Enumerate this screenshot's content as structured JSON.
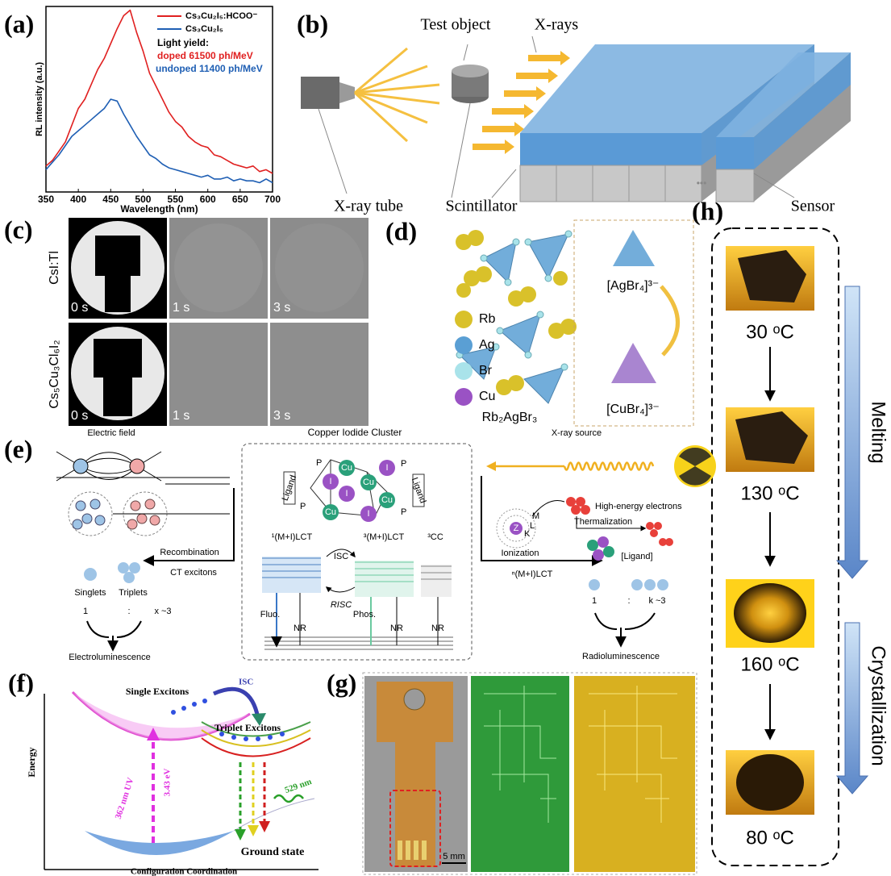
{
  "chart_data": {
    "type": "line",
    "x_label": "Wavelength (nm)",
    "y_label": "RL intensity (a.u.)",
    "x": [
      350,
      360,
      370,
      380,
      390,
      400,
      410,
      420,
      430,
      440,
      450,
      460,
      470,
      480,
      490,
      500,
      510,
      520,
      530,
      540,
      550,
      560,
      570,
      580,
      590,
      600,
      610,
      620,
      630,
      640,
      650,
      660,
      670,
      680,
      690,
      700
    ],
    "xlim": [
      350,
      700
    ],
    "xticks": [
      350,
      400,
      450,
      500,
      550,
      600,
      650,
      700
    ],
    "ylim": [
      0,
      1
    ],
    "series": [
      {
        "name": "Cs₃Cu₂I₅:HCOO⁻",
        "color": "#e02020",
        "values": [
          0.14,
          0.17,
          0.22,
          0.27,
          0.36,
          0.45,
          0.5,
          0.58,
          0.66,
          0.72,
          0.8,
          0.88,
          0.95,
          0.98,
          0.86,
          0.76,
          0.64,
          0.57,
          0.5,
          0.43,
          0.38,
          0.35,
          0.3,
          0.27,
          0.25,
          0.24,
          0.2,
          0.19,
          0.17,
          0.15,
          0.14,
          0.13,
          0.14,
          0.11,
          0.12,
          0.1
        ]
      },
      {
        "name": "Cs₃Cu₂I₅",
        "color": "#1f5fb4",
        "values": [
          0.12,
          0.16,
          0.2,
          0.25,
          0.3,
          0.33,
          0.36,
          0.39,
          0.42,
          0.45,
          0.5,
          0.49,
          0.42,
          0.36,
          0.3,
          0.25,
          0.2,
          0.18,
          0.15,
          0.13,
          0.12,
          0.11,
          0.1,
          0.09,
          0.08,
          0.09,
          0.07,
          0.07,
          0.08,
          0.06,
          0.07,
          0.06,
          0.06,
          0.05,
          0.07,
          0.05
        ]
      }
    ],
    "annotations": [
      "Light yield:",
      "doped 61500 ph/MeV",
      "undoped 11400 ph/MeV"
    ]
  },
  "figure": {
    "a": {
      "label": "(a)"
    },
    "b": {
      "label": "(b)",
      "test_object": "Test object",
      "x_rays": "X-rays",
      "x_ray_tube": "X-ray tube",
      "scintillator": "Scintillator",
      "sensor": "Sensor",
      "ellipsis": "•••"
    },
    "c": {
      "label": "(c)",
      "rows": [
        {
          "name": "CsI:Tl",
          "frames": [
            "0 s",
            "1 s",
            "3 s"
          ]
        },
        {
          "name": "Cs₅Cu₃Cl₆I₂",
          "frames": [
            "0 s",
            "1 s",
            "3 s"
          ]
        }
      ]
    },
    "d": {
      "label": "(d)",
      "legend": [
        "Rb",
        "Ag",
        "Br",
        "Cu"
      ],
      "formula": "Rb₂AgBr₃",
      "ag_unit": "[AgBr₄]³⁻",
      "cu_unit": "[CuBr₄]³⁻"
    },
    "e": {
      "label": "(e)",
      "electric_field": "Electric field",
      "cluster_title": "Copper Iodide Cluster",
      "xray_source": "X-ray source",
      "recombination": "Recombination",
      "ct_excitons": "CT excitons",
      "singlets": "Singlets",
      "triplets": "Triplets",
      "el_ratio": [
        "1",
        ":",
        "x ~3"
      ],
      "electroluminescence": "Electroluminescence",
      "ligand": "Ligand",
      "p": "P",
      "cu": "Cu",
      "i": "I",
      "levels": [
        "¹(M+I)LCT",
        "³(M+I)LCT",
        "³CC"
      ],
      "isc": "ISC",
      "risc": "RISC",
      "fluo": "Fluo.",
      "phos": "Phos.",
      "nr": "NR",
      "high_energy": "High-energy electrons",
      "thermalization": "Thermalization",
      "ionization": "Ionization",
      "n_lct": "ⁿ(M+I)LCT",
      "ligand_bracket": "[Ligand]",
      "rl_ratio": [
        "1",
        ":",
        "k ~3"
      ],
      "radioluminescence": "Radioluminescence",
      "z": "Z",
      "shells": [
        "K",
        "L",
        "M"
      ]
    },
    "f": {
      "label": "(f)",
      "single": "Single Excitons",
      "isc": "ISC",
      "triplet": "Triplet Excitons",
      "energy": "Energy",
      "uv": "362 nm UV",
      "ev": "3.43 eV",
      "emission": "529 nm",
      "ground": "Ground state",
      "x_label": "Configuration Coordination"
    },
    "g": {
      "label": "(g)",
      "scale": "5 mm"
    },
    "h": {
      "label": "(h)",
      "temperatures": [
        "30 ᵒC",
        "130 ᵒC",
        "160 ᵒC",
        "80 ᵒC"
      ],
      "melting": "Melting",
      "crystallization": "Crystallization"
    }
  }
}
